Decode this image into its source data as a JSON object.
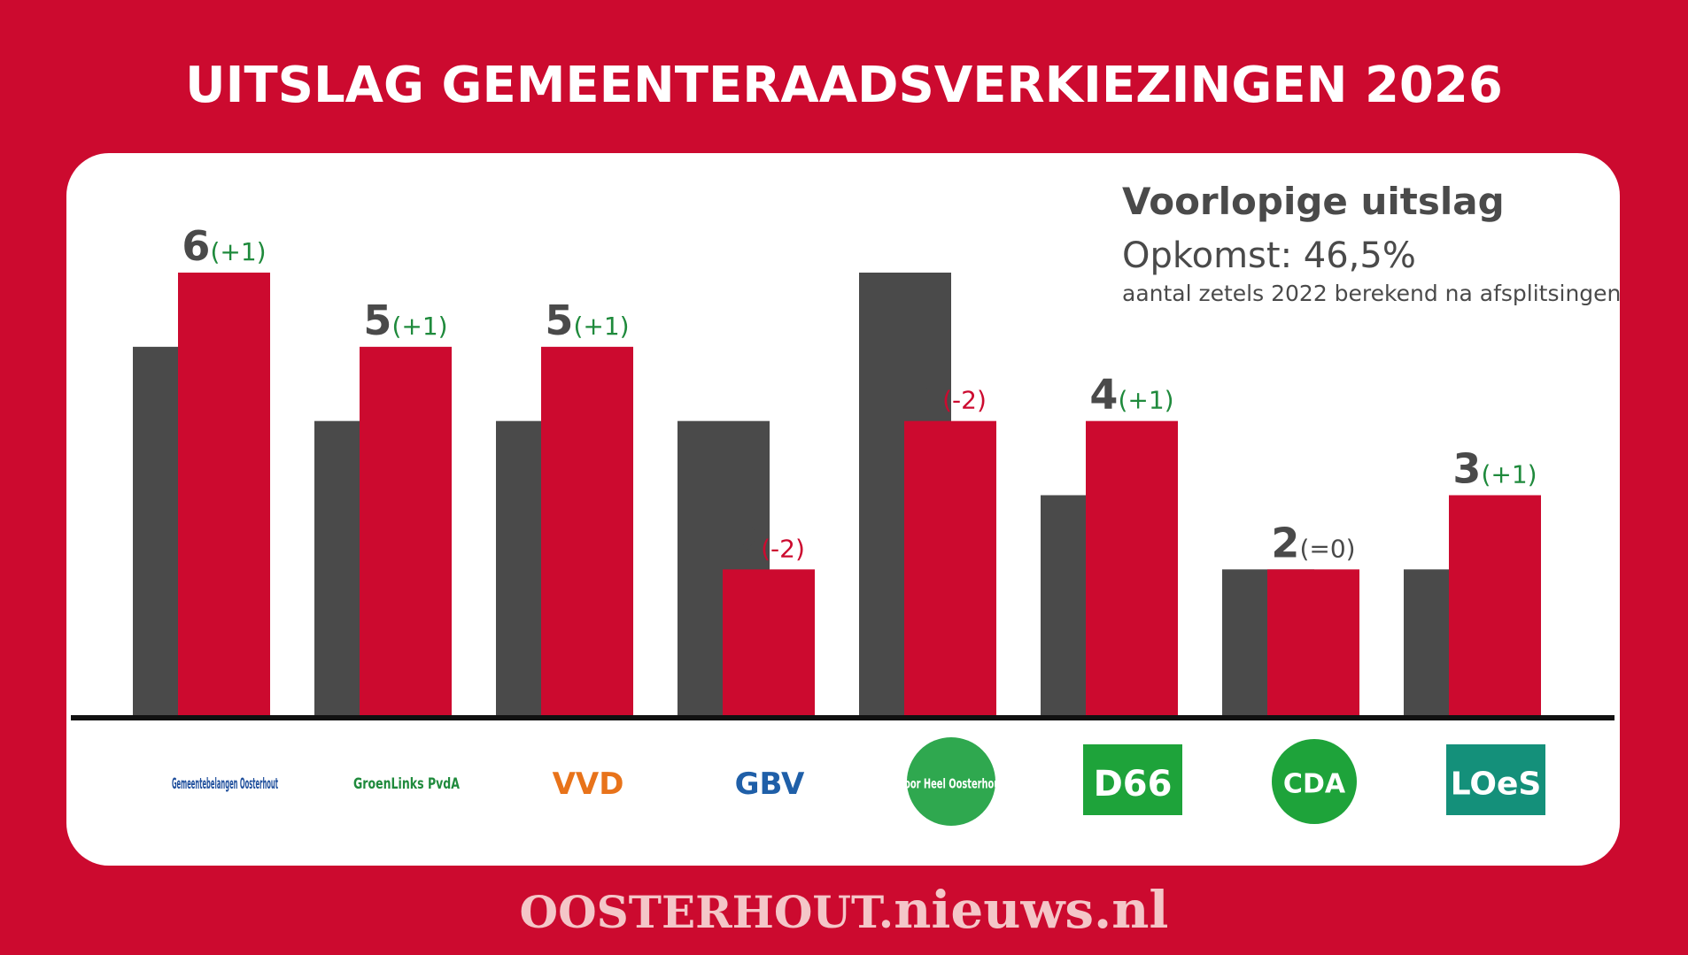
{
  "chart_data": {
    "type": "bar",
    "title": "UITSLAG GEMEENTERAADSVERKIEZINGEN 2026",
    "subtitle": "Voorlopige uitslag",
    "turnout": "Opkomst: 46,5%",
    "note": "aantal zetels 2022 berekend na afsplitsingen",
    "categories": [
      "Gemeentebelangen Oosterhout",
      "GroenLinks PvdA",
      "VVD",
      "GBV",
      "Voor Heel Oosterhout",
      "D66",
      "CDA",
      "LOeS"
    ],
    "series": [
      {
        "color": "#4a4a4a",
        "values": [
          5,
          4,
          4,
          4,
          6,
          3,
          2,
          2
        ]
      },
      {
        "color": "#cc0a2f",
        "values": [
          6,
          5,
          5,
          2,
          4,
          4,
          2,
          3
        ]
      }
    ],
    "annotations": [
      {
        "text": "(+1)",
        "color": "#1f8a3c"
      },
      {
        "text": "(+1)",
        "color": "#1f8a3c"
      },
      {
        "text": "(+1)",
        "color": "#1f8a3c"
      },
      {
        "text": "(-2)",
        "color": "#cc0a2f"
      },
      {
        "text": "(-2)",
        "color": "#cc0a2f"
      },
      {
        "text": "(+1)",
        "color": "#1f8a3c"
      },
      {
        "text": "(=0)",
        "color": "#4a4a4a"
      },
      {
        "text": "(+1)",
        "color": "#1f8a3c"
      }
    ],
    "ylim": [
      0,
      6
    ],
    "footer": [
      "OOSTERHOUT.",
      "nieuws.nl"
    ]
  }
}
